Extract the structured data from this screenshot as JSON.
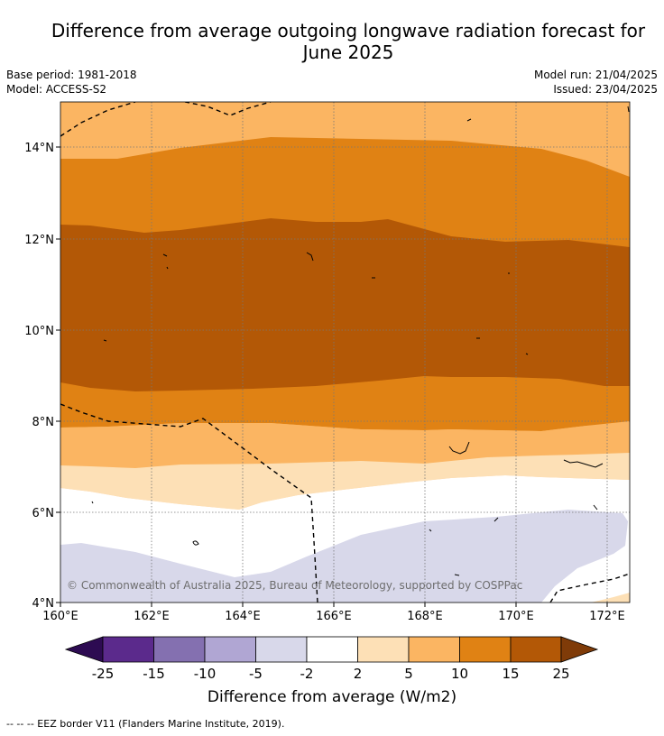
{
  "title_line1": "Difference from average outgoing longwave radiation forecast for",
  "title_line2": "June 2025",
  "base_period": "Base period: 1981-2018",
  "model": "Model: ACCESS-S2",
  "model_run": "Model run: 21/04/2025",
  "issued": "Issued: 23/04/2025",
  "copyright": "© Commonwealth of Australia 2025, Bureau of Meteorology, supported by COSPPac",
  "lat_ticks": [
    "14°N",
    "12°N",
    "10°N",
    "8°N",
    "6°N",
    "4°N"
  ],
  "lon_ticks": [
    "160°E",
    "162°E",
    "164°E",
    "166°E",
    "168°E",
    "170°E",
    "172°E"
  ],
  "colorbar": {
    "title": "Difference from average (W/m2)",
    "labels": [
      "-25",
      "-15",
      "-10",
      "-5",
      "-2",
      "2",
      "5",
      "10",
      "15",
      "25"
    ],
    "colors": [
      "#2d0b52",
      "#5b2a8c",
      "#8470b0",
      "#b0a6d3",
      "#d8d8ea",
      "#ffffff",
      "#fde0b6",
      "#fbb562",
      "#e08214",
      "#b35806",
      "#7f3b08"
    ]
  },
  "legend_footer": "--  --  -- EEZ border V11 (Flanders Marine Institute, 2019)."
}
